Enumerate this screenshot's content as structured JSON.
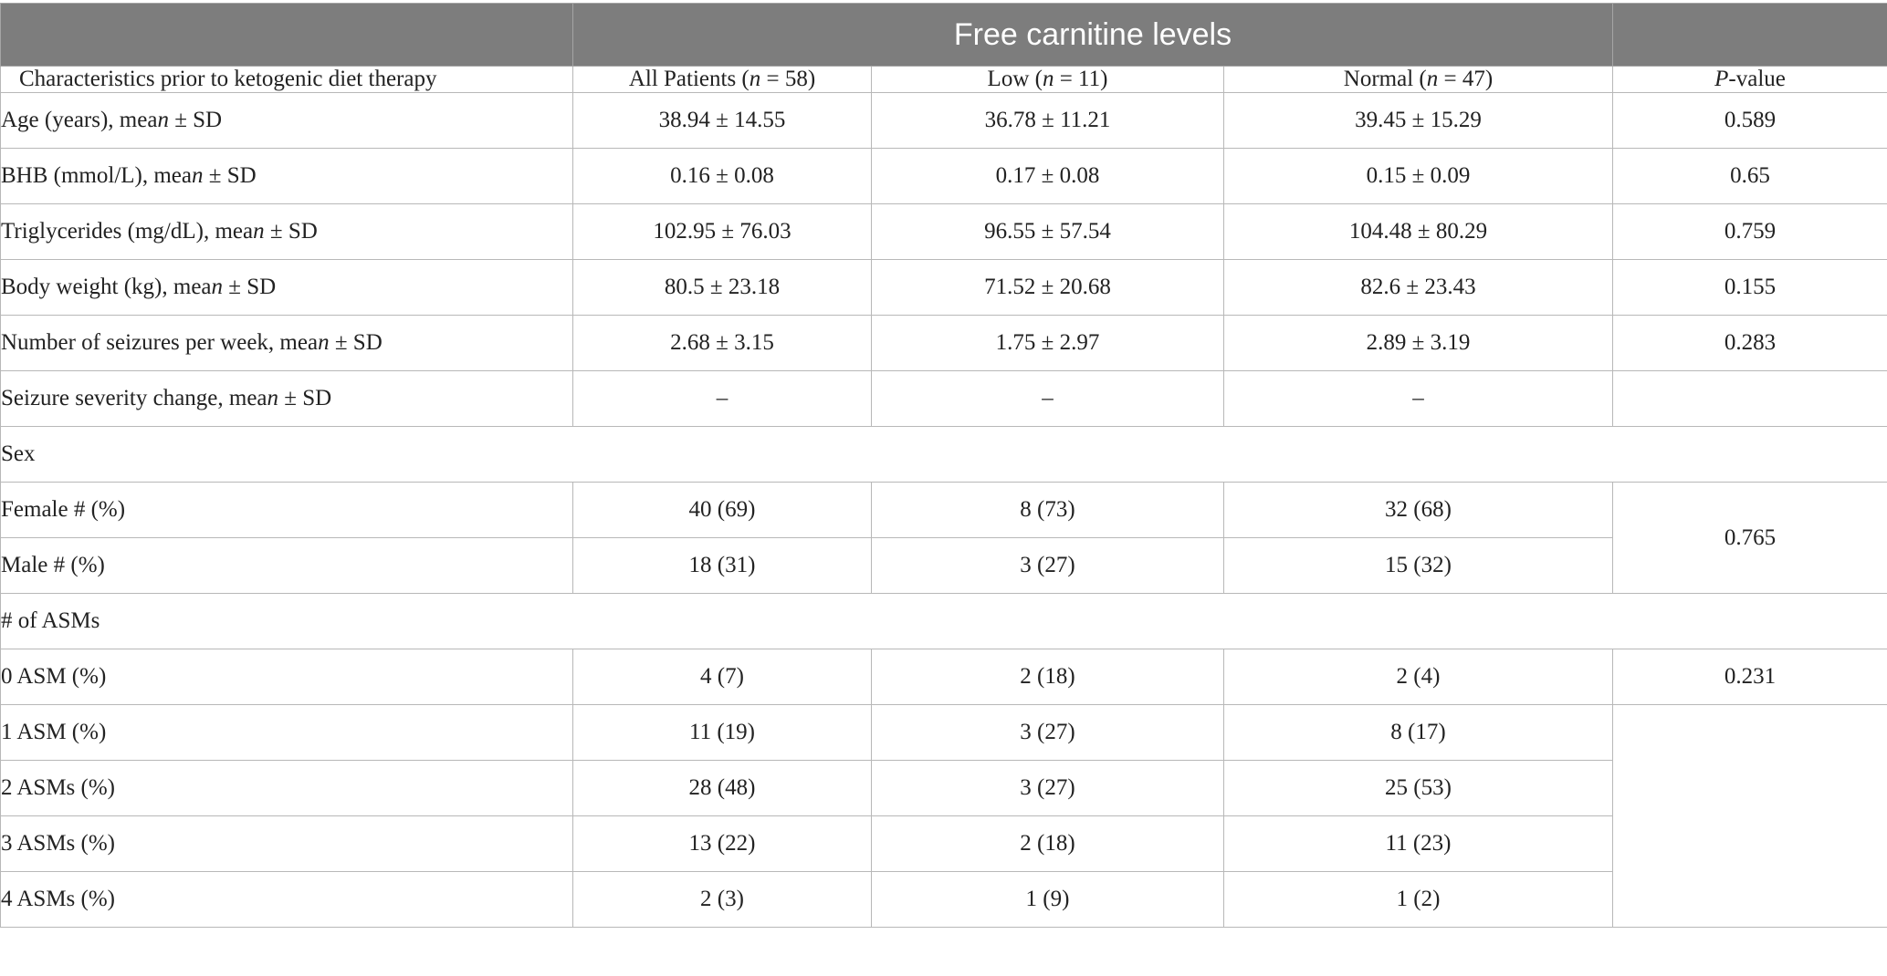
{
  "table": {
    "banner": "Free carnitine levels",
    "headers": {
      "characteristics": "Characteristics prior to ketogenic diet therapy",
      "all_pre": "All Patients (",
      "all_n": "n",
      "all_post": " = 58)",
      "low_pre": "Low (",
      "low_n": "n",
      "low_post": " = 11)",
      "normal_pre": "Normal (",
      "normal_n": "n",
      "normal_post": " = 47)",
      "p_italic": "P",
      "p_rest": "-value"
    },
    "mean_rows": [
      {
        "label_pre": "Age (years), mea",
        "label_n": "n",
        "label_post": " ± SD",
        "all": "38.94 ± 14.55",
        "low": "36.78 ± 11.21",
        "normal": "39.45 ± 15.29",
        "p": "0.589"
      },
      {
        "label_pre": "BHB (mmol/L), mea",
        "label_n": "n",
        "label_post": " ± SD",
        "all": "0.16 ± 0.08",
        "low": "0.17 ± 0.08",
        "normal": "0.15 ± 0.09",
        "p": "0.65"
      },
      {
        "label_pre": "Triglycerides (mg/dL), mea",
        "label_n": "n",
        "label_post": " ± SD",
        "all": "102.95 ± 76.03",
        "low": "96.55 ± 57.54",
        "normal": "104.48 ± 80.29",
        "p": "0.759"
      },
      {
        "label_pre": "Body weight (kg), mea",
        "label_n": "n",
        "label_post": " ± SD",
        "all": "80.5 ± 23.18",
        "low": "71.52 ± 20.68",
        "normal": "82.6 ± 23.43",
        "p": "0.155"
      },
      {
        "label_pre": "Number of seizures per week, mea",
        "label_n": "n",
        "label_post": " ± SD",
        "all": "2.68 ± 3.15",
        "low": "1.75 ± 2.97",
        "normal": "2.89 ± 3.19",
        "p": "0.283"
      },
      {
        "label_pre": "Seizure severity change, mea",
        "label_n": "n",
        "label_post": " ± SD",
        "all": "–",
        "low": "–",
        "normal": "–",
        "p": ""
      }
    ],
    "sex": {
      "section_label": "Sex",
      "p": "0.765",
      "rows": [
        {
          "label": "Female # (%)",
          "all": "40 (69)",
          "low": "8 (73)",
          "normal": "32 (68)"
        },
        {
          "label": "Male # (%)",
          "all": "18 (31)",
          "low": "3 (27)",
          "normal": "15 (32)"
        }
      ]
    },
    "asms": {
      "section_label": "# of ASMs",
      "p": "0.231",
      "rows": [
        {
          "label": "0 ASM (%)",
          "all": "4 (7)",
          "low": "2 (18)",
          "normal": "2 (4)"
        },
        {
          "label": "1 ASM (%)",
          "all": "11 (19)",
          "low": "3 (27)",
          "normal": "8 (17)"
        },
        {
          "label": "2 ASMs (%)",
          "all": "28 (48)",
          "low": "3 (27)",
          "normal": "25 (53)"
        },
        {
          "label": "3 ASMs (%)",
          "all": "13 (22)",
          "low": "2 (18)",
          "normal": "11 (23)"
        },
        {
          "label": "4 ASMs (%)",
          "all": "2 (3)",
          "low": "1 (9)",
          "normal": "1 (2)"
        }
      ]
    }
  }
}
